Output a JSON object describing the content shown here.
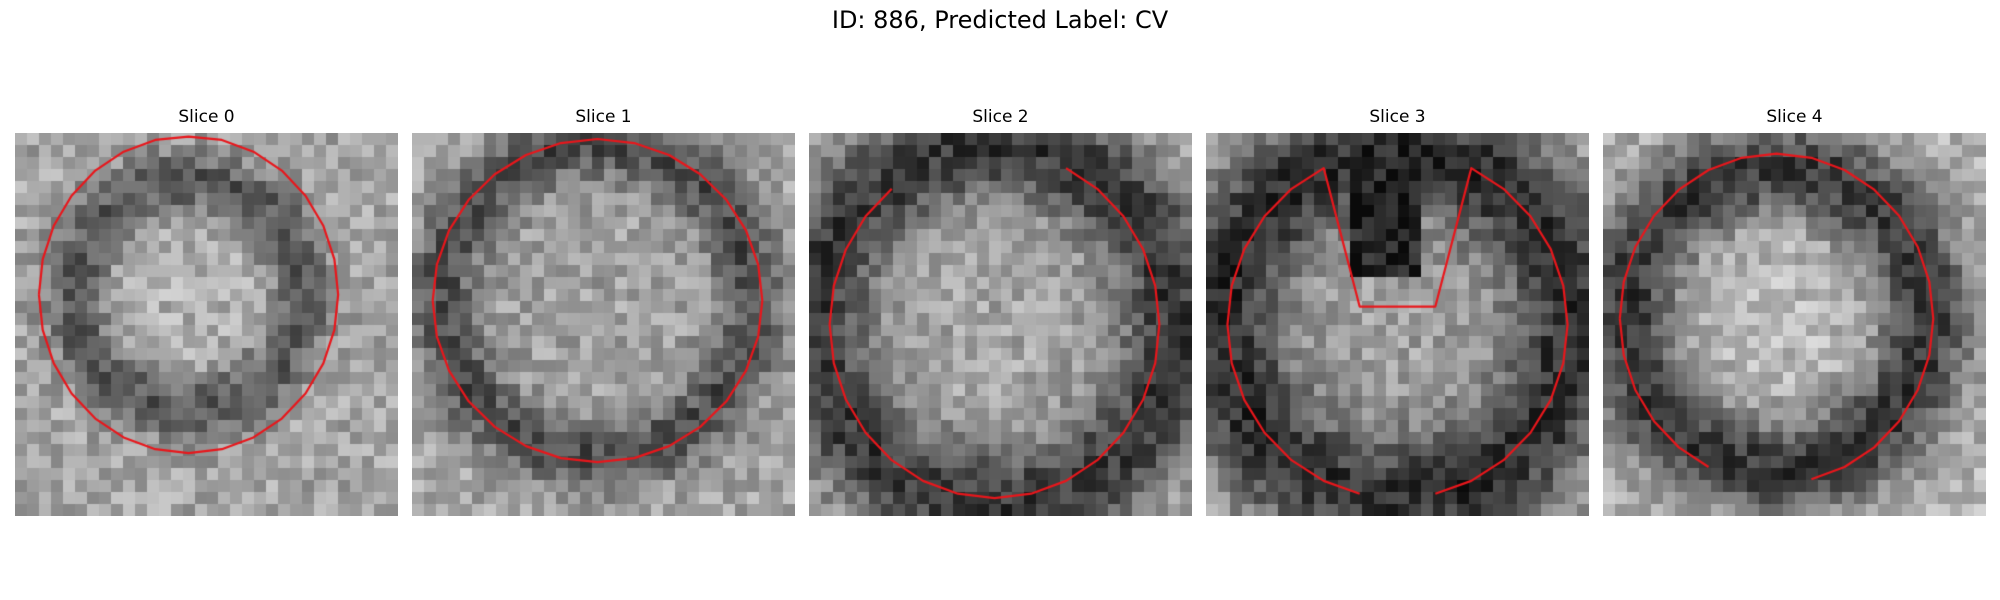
{
  "figure": {
    "title": "ID: 886, Predicted Label: CV"
  },
  "panels": [
    {
      "title": "Slice 0",
      "alt": "Grayscale microscopy slice 0 with red contour outline"
    },
    {
      "title": "Slice 1",
      "alt": "Grayscale microscopy slice 1 with red contour outline"
    },
    {
      "title": "Slice 2",
      "alt": "Grayscale microscopy slice 2 with red contour outline"
    },
    {
      "title": "Slice 3",
      "alt": "Grayscale microscopy slice 3 with red contour outline"
    },
    {
      "title": "Slice 4",
      "alt": "Grayscale microscopy slice 4 with red contour outline"
    }
  ],
  "colors": {
    "contour": "#e8161b",
    "background": "#ffffff"
  }
}
